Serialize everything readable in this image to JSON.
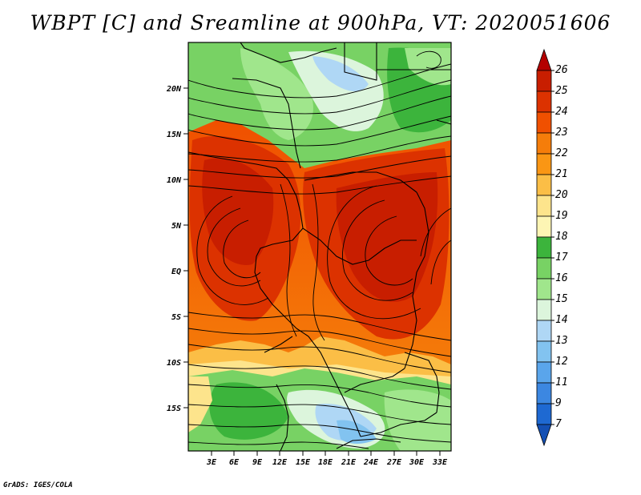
{
  "title": "WBPT [C] and Sreamline at 900hPa, VT: 2020051606",
  "footer": "GrADS: IGES/COLA",
  "map": {
    "variable": "Wet-bulb potential temperature",
    "units": "C",
    "level": "900hPa",
    "valid_time": "2020051606",
    "lat_labels": [
      "20N",
      "15N",
      "10N",
      "5N",
      "EQ",
      "5S",
      "10S",
      "15S"
    ],
    "lat_values": [
      20,
      15,
      10,
      5,
      0,
      -5,
      -10,
      -15
    ],
    "lon_labels": [
      "3E",
      "6E",
      "9E",
      "12E",
      "15E",
      "18E",
      "21E",
      "24E",
      "27E",
      "30E",
      "33E"
    ],
    "lon_values": [
      3,
      6,
      9,
      12,
      15,
      18,
      21,
      24,
      27,
      30,
      33
    ],
    "lon_range": [
      0,
      34.5
    ],
    "lat_range": [
      -20,
      24.5
    ]
  },
  "colorbar": {
    "labels": [
      "26",
      "25",
      "24",
      "23",
      "22",
      "21",
      "20",
      "19",
      "18",
      "17",
      "16",
      "15",
      "14",
      "13",
      "12",
      "11",
      "9",
      "7"
    ],
    "colors": [
      "#b40000",
      "#c81e00",
      "#dc3200",
      "#f05000",
      "#f57d0a",
      "#fa9614",
      "#fbbe46",
      "#fde48c",
      "#fdf5b4",
      "#3cb43c",
      "#78d264",
      "#a0e68c",
      "#dcf5dc",
      "#afd7f5",
      "#82c3f0",
      "#5aa5eb",
      "#3c87e1",
      "#1e69d2",
      "#1450b4"
    ]
  }
}
